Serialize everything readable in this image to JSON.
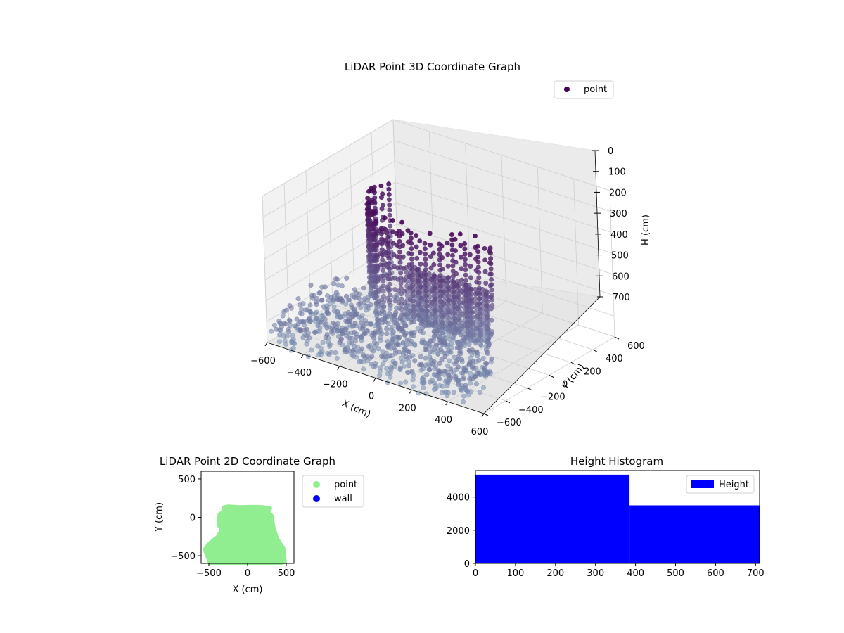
{
  "chart_data": [
    {
      "type": "scatter3d",
      "title": "LiDAR Point 3D Coordinate Graph",
      "xlabel": "X (cm)",
      "ylabel": "Y (cm)",
      "zlabel": "H (cm)",
      "xlim": [
        -600,
        600
      ],
      "ylim": [
        -600,
        600
      ],
      "zlim": [
        700,
        0
      ],
      "xticks": [
        -600,
        -400,
        -200,
        0,
        200,
        400,
        600
      ],
      "yticks": [
        -600,
        -400,
        -200,
        0,
        200,
        400,
        600
      ],
      "zticks": [
        0,
        100,
        200,
        300,
        400,
        500,
        600,
        700
      ],
      "legend": {
        "placement": "top-right",
        "entries": [
          "point"
        ]
      },
      "colors": {
        "high": "#440154",
        "low": "#7d95b5"
      },
      "grid": true,
      "series": [
        {
          "name": "point",
          "description_free": true,
          "sample_points": [
            [
              -500,
              100,
              350
            ],
            [
              -450,
              250,
              300
            ],
            [
              -400,
              380,
              250
            ],
            [
              -300,
              450,
              200
            ],
            [
              -150,
              520,
              150
            ],
            [
              0,
              540,
              120
            ],
            [
              150,
              520,
              110
            ],
            [
              300,
              470,
              130
            ],
            [
              420,
              380,
              200
            ],
            [
              480,
              250,
              280
            ],
            [
              500,
              100,
              380
            ],
            [
              450,
              -50,
              500
            ],
            [
              350,
              -150,
              600
            ],
            [
              200,
              -200,
              650
            ],
            [
              50,
              -220,
              680
            ],
            [
              -100,
              -200,
              660
            ],
            [
              -250,
              -150,
              620
            ],
            [
              -400,
              -80,
              560
            ],
            [
              -500,
              -20,
              480
            ],
            [
              -550,
              50,
              420
            ],
            [
              -200,
              -500,
              700
            ],
            [
              0,
              -550,
              700
            ],
            [
              200,
              -500,
              690
            ],
            [
              400,
              -400,
              680
            ],
            [
              -400,
              -400,
              700
            ],
            [
              -100,
              100,
              640
            ],
            [
              100,
              50,
              650
            ],
            [
              250,
              0,
              660
            ]
          ]
        }
      ]
    },
    {
      "type": "scatter",
      "title": "LiDAR Point 2D Coordinate Graph",
      "xlabel": "X (cm)",
      "ylabel": "Y (cm)",
      "xlim": [
        -600,
        600
      ],
      "ylim": [
        -600,
        600
      ],
      "xticks": [
        -500,
        0,
        500
      ],
      "yticks": [
        -500,
        0,
        500
      ],
      "legend": {
        "placement": "outside-right",
        "entries": [
          "point",
          "wall"
        ]
      },
      "colors": {
        "point": "#90ee90",
        "wall": "#0000ff"
      },
      "series": [
        {
          "name": "point",
          "outline": [
            [
              -480,
              -600
            ],
            [
              -550,
              -420
            ],
            [
              -500,
              -350
            ],
            [
              -380,
              -250
            ],
            [
              -330,
              -160
            ],
            [
              -370,
              -100
            ],
            [
              -360,
              40
            ],
            [
              -320,
              60
            ],
            [
              -300,
              130
            ],
            [
              -250,
              140
            ],
            [
              -100,
              130
            ],
            [
              50,
              135
            ],
            [
              200,
              130
            ],
            [
              290,
              120
            ],
            [
              260,
              60
            ],
            [
              310,
              20
            ],
            [
              330,
              -120
            ],
            [
              380,
              -280
            ],
            [
              460,
              -400
            ],
            [
              480,
              -580
            ],
            [
              400,
              -600
            ]
          ]
        },
        {
          "name": "wall",
          "points": []
        }
      ]
    },
    {
      "type": "histogram",
      "title": "Height Histogram",
      "xlim": [
        0,
        710
      ],
      "ylim": [
        0,
        5600
      ],
      "xticks": [
        0,
        100,
        200,
        300,
        400,
        500,
        600,
        700
      ],
      "yticks": [
        0,
        2000,
        4000
      ],
      "legend": {
        "placement": "top-right",
        "entries": [
          "Height"
        ]
      },
      "colors": {
        "bar": "#0000ff"
      },
      "series": [
        {
          "name": "Height",
          "bins": [
            {
              "x0": 0,
              "x1": 385,
              "count": 5350
            },
            {
              "x0": 385,
              "x1": 710,
              "count": 3500
            }
          ]
        }
      ]
    }
  ]
}
